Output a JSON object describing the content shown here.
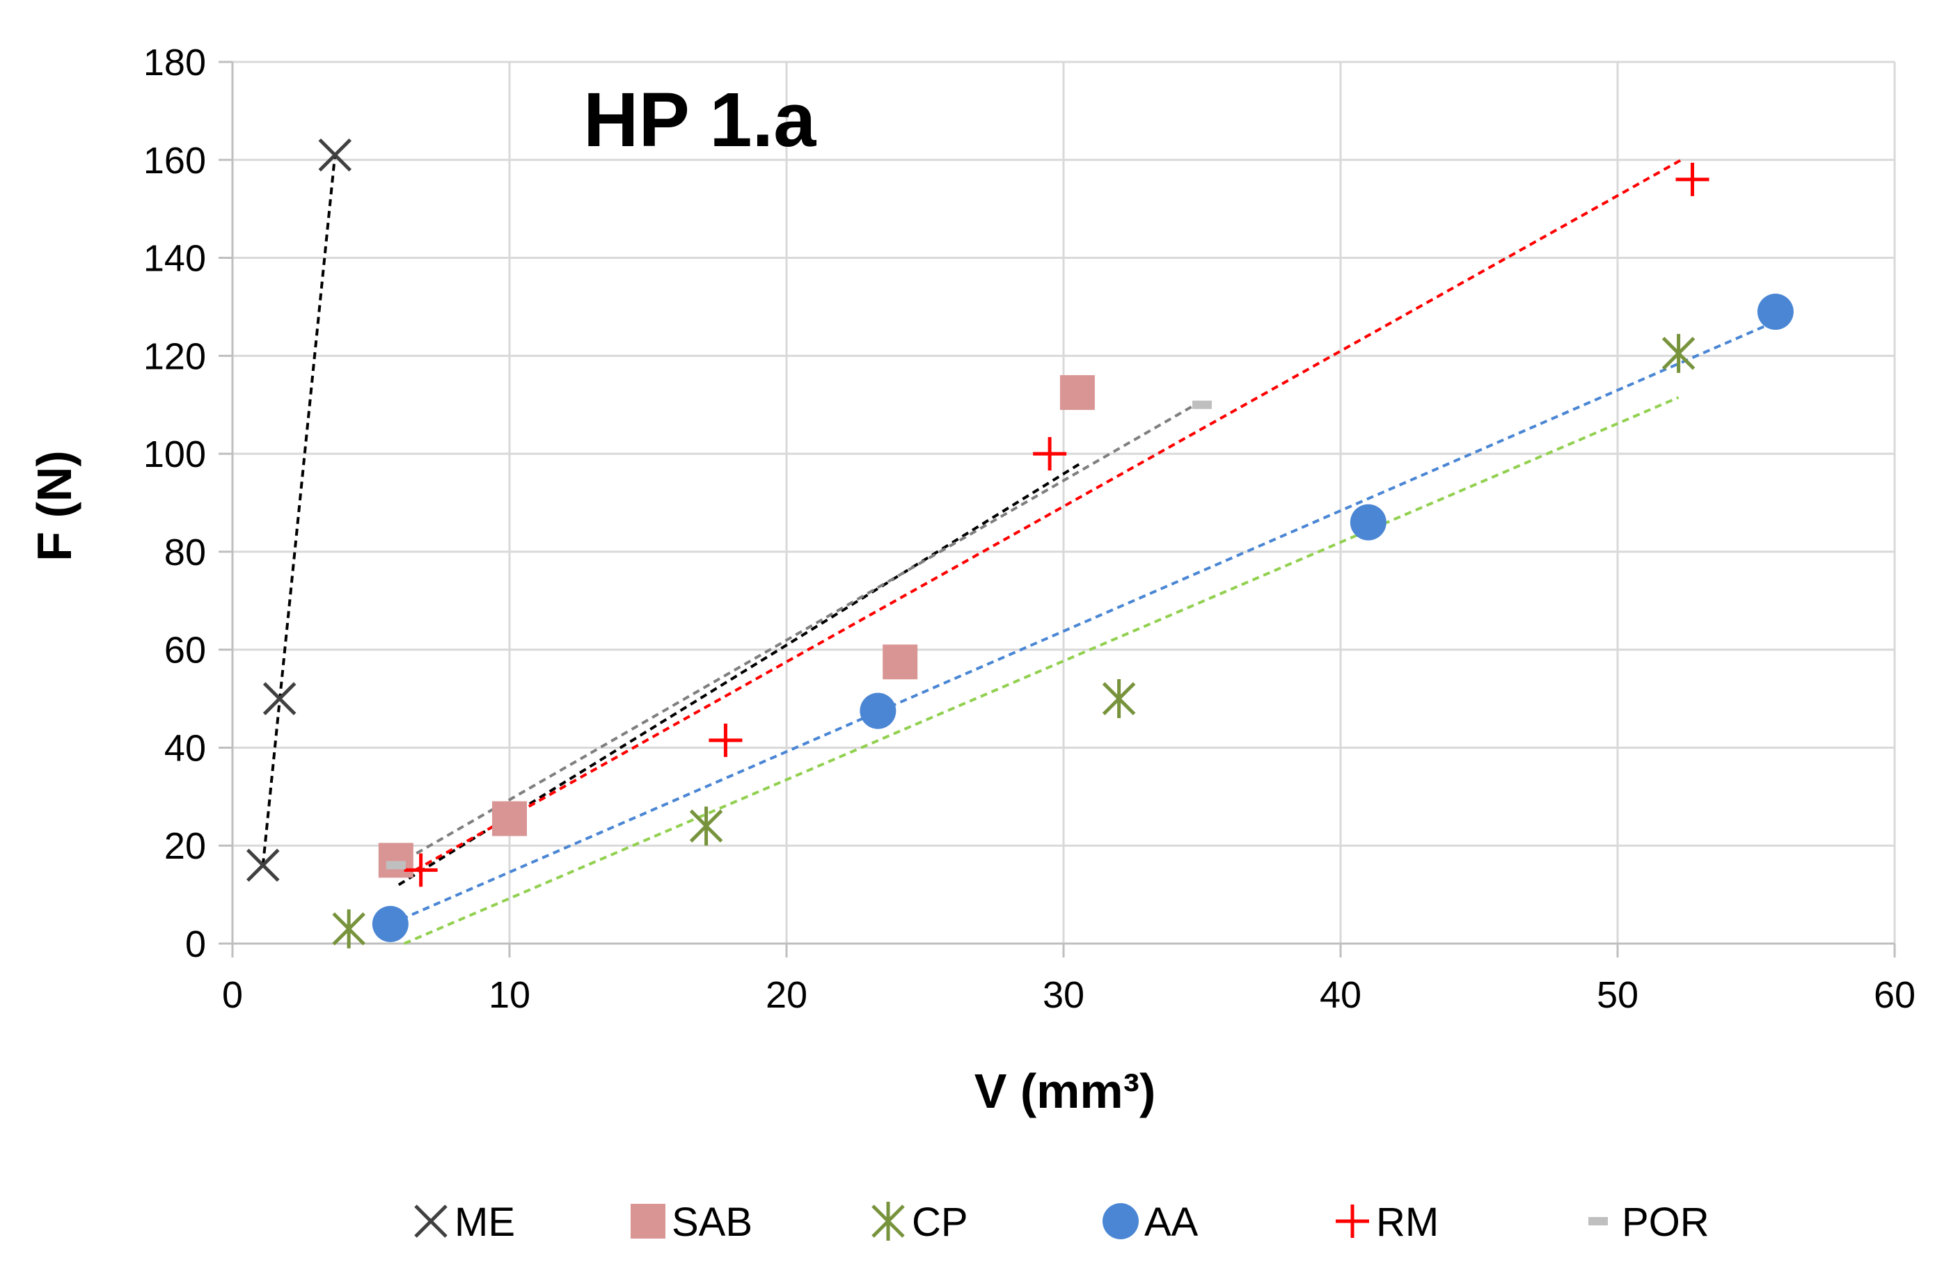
{
  "chart_data": {
    "type": "scatter",
    "title": "HP 1.a",
    "xlabel": "V (mm³)",
    "ylabel": "F (N)",
    "xlim": [
      0,
      60
    ],
    "ylim": [
      0,
      180
    ],
    "xticks": [
      0,
      10,
      20,
      30,
      40,
      50,
      60
    ],
    "yticks": [
      0,
      20,
      40,
      60,
      80,
      100,
      120,
      140,
      160,
      180
    ],
    "grid": true,
    "legend_position": "bottom",
    "series": [
      {
        "name": "ME",
        "marker": "x",
        "color": "#404040",
        "trend_color": "#000000",
        "points": [
          [
            1.1,
            16
          ],
          [
            1.7,
            50
          ],
          [
            3.7,
            161
          ]
        ],
        "trendline": [
          [
            1.1,
            16
          ],
          [
            3.7,
            161
          ]
        ]
      },
      {
        "name": "SAB",
        "marker": "square",
        "color": "#D99594",
        "trend_color": "#000000",
        "points": [
          [
            5.9,
            17
          ],
          [
            10,
            25.5
          ],
          [
            24.1,
            57.5
          ],
          [
            30.5,
            112.5
          ]
        ],
        "trendline": [
          [
            6,
            12
          ],
          [
            30.6,
            98
          ]
        ]
      },
      {
        "name": "CP",
        "marker": "asterisk",
        "color": "#77933C",
        "trend_color": "#92D050",
        "points": [
          [
            4.2,
            3
          ],
          [
            17.1,
            24
          ],
          [
            32,
            50
          ],
          [
            52.2,
            120.5
          ]
        ],
        "trendline": [
          [
            6.2,
            0
          ],
          [
            52.2,
            111.5
          ]
        ]
      },
      {
        "name": "AA",
        "marker": "circle",
        "color": "#4A86D4",
        "trend_color": "#4A86D4",
        "points": [
          [
            5.7,
            4
          ],
          [
            23.3,
            47.5
          ],
          [
            41,
            86
          ],
          [
            55.7,
            129
          ]
        ],
        "trendline": [
          [
            5.7,
            4
          ],
          [
            55.7,
            127
          ]
        ]
      },
      {
        "name": "RM",
        "marker": "plus",
        "color": "#FF0000",
        "trend_color": "#FF0000",
        "points": [
          [
            6.8,
            15
          ],
          [
            17.8,
            41.5
          ],
          [
            29.5,
            100
          ],
          [
            52.7,
            156
          ]
        ],
        "trendline": [
          [
            6.6,
            15
          ],
          [
            52.3,
            160
          ]
        ]
      },
      {
        "name": "POR",
        "marker": "dash",
        "color": "#BFBFBF",
        "trend_color": "#7F7F7F",
        "points": [
          [
            5.9,
            16
          ],
          [
            35,
            110
          ]
        ],
        "trendline": [
          [
            5.9,
            16
          ],
          [
            34.9,
            110.5
          ]
        ]
      }
    ]
  }
}
